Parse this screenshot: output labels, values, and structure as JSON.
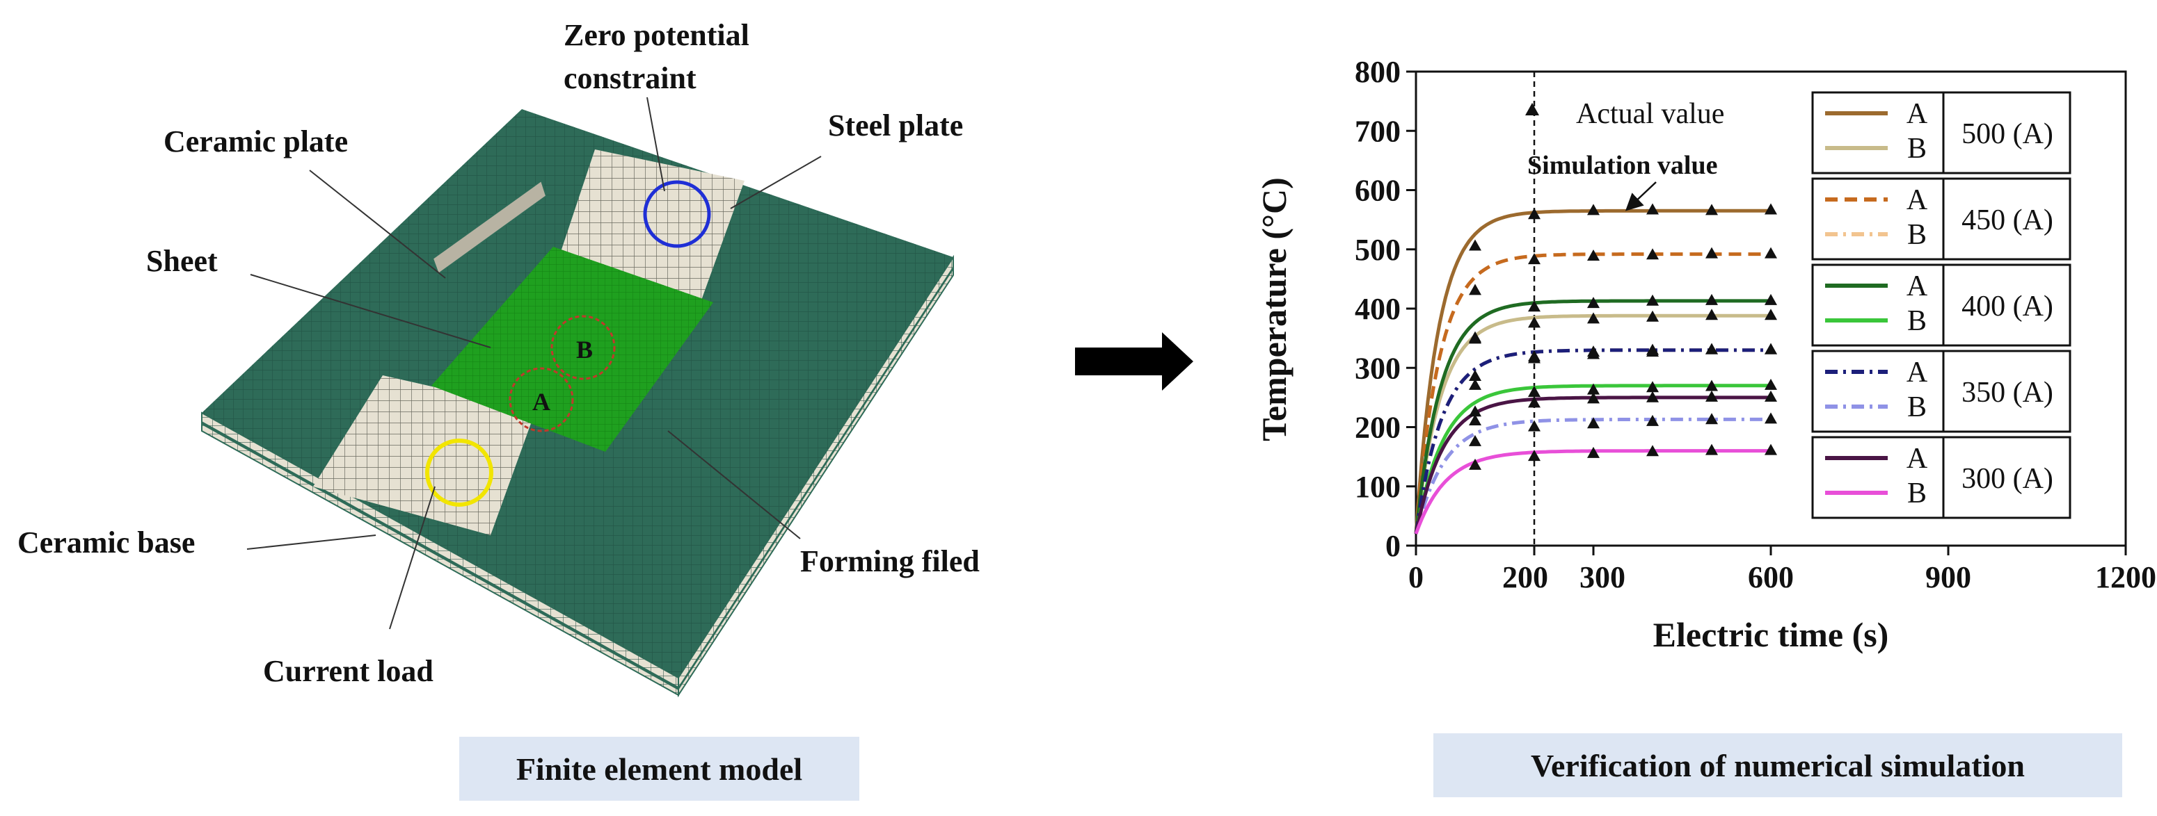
{
  "model": {
    "caption": "Finite element model",
    "labels": {
      "zero_potential_line1": "Zero potential",
      "zero_potential_line2": "constraint",
      "steel_plate": "Steel plate",
      "ceramic_plate": "Ceramic plate",
      "sheet": "Sheet",
      "ceramic_base": "Ceramic base",
      "forming_field": "Forming filed",
      "current_load": "Current load",
      "point_a": "A",
      "point_b": "B"
    },
    "colors": {
      "ceramic": "#2e6b58",
      "steel": "#e6e1d2",
      "sheet": "#1fa01f",
      "zero_potential_circle": "#1f2fd6",
      "current_load_circle": "#f2e500",
      "point_circle": "#c0392b"
    }
  },
  "arrow": {
    "icon": "right-arrow-icon",
    "color": "#000000"
  },
  "chart_caption": "Verification of numerical simulation",
  "chart_data": {
    "type": "line",
    "xlabel": "Electric time (s)",
    "ylabel": "Temperature (°C)",
    "xlim": [
      0,
      1200
    ],
    "ylim": [
      0,
      800
    ],
    "x_ticks": [
      0,
      200,
      300,
      600,
      900,
      1200
    ],
    "x_tick_labels": [
      "0",
      "200",
      "300",
      "600",
      "900",
      "1200"
    ],
    "y_ticks": [
      0,
      100,
      200,
      300,
      400,
      500,
      600,
      700,
      800
    ],
    "grid": false,
    "vline_x": 200,
    "annotations": {
      "actual_value": "Actual value",
      "simulation_value": "Simulation value"
    },
    "legend_groups": [
      {
        "current": "500 (A)",
        "A_color": "#9c6a2e",
        "B_color": "#c8bb8a",
        "A_dash": "solid",
        "B_dash": "solid"
      },
      {
        "current": "450 (A)",
        "A_color": "#c66a1e",
        "B_color": "#f2c48f",
        "A_dash": "dashed",
        "B_dash": "dashdot"
      },
      {
        "current": "400 (A)",
        "A_color": "#1f6b22",
        "B_color": "#3ac63a",
        "A_dash": "solid",
        "B_dash": "solid"
      },
      {
        "current": "350 (A)",
        "A_color": "#1c1f7a",
        "B_color": "#8f92e6",
        "A_dash": "dashdot",
        "B_dash": "dashdot"
      },
      {
        "current": "300 (A)",
        "A_color": "#4a1545",
        "B_color": "#e84fd8",
        "A_dash": "solid",
        "B_dash": "solid"
      }
    ],
    "legend_series_labels": [
      "A",
      "B"
    ],
    "series": [
      {
        "group": 0,
        "point": "A",
        "plateau": 565,
        "start": 20,
        "tau": 38
      },
      {
        "group": 0,
        "point": "B",
        "plateau": 388,
        "start": 20,
        "tau": 42
      },
      {
        "group": 1,
        "point": "A",
        "plateau": 492,
        "start": 20,
        "tau": 40
      },
      {
        "group": 1,
        "point": "B",
        "plateau": 330,
        "start": 20,
        "tau": 44
      },
      {
        "group": 2,
        "point": "A",
        "plateau": 413,
        "start": 20,
        "tau": 42
      },
      {
        "group": 2,
        "point": "B",
        "plateau": 270,
        "start": 20,
        "tau": 46
      },
      {
        "group": 3,
        "point": "A",
        "plateau": 330,
        "start": 20,
        "tau": 44
      },
      {
        "group": 3,
        "point": "B",
        "plateau": 213,
        "start": 20,
        "tau": 48
      },
      {
        "group": 4,
        "point": "A",
        "plateau": 250,
        "start": 20,
        "tau": 46
      },
      {
        "group": 4,
        "point": "B",
        "plateau": 160,
        "start": 20,
        "tau": 50
      }
    ],
    "measured_times": [
      100,
      200,
      300,
      400,
      500,
      600
    ],
    "measured_values": [
      [
        505,
        558,
        565,
        566,
        565,
        566
      ],
      [
        350,
        375,
        382,
        385,
        388,
        388
      ],
      [
        430,
        482,
        488,
        490,
        492,
        492
      ],
      [
        285,
        315,
        322,
        326,
        330,
        330
      ],
      [
        348,
        402,
        408,
        412,
        413,
        413
      ],
      [
        225,
        258,
        262,
        266,
        268,
        270
      ],
      [
        270,
        318,
        326,
        329,
        330,
        330
      ],
      [
        175,
        200,
        205,
        209,
        212,
        213
      ],
      [
        210,
        240,
        247,
        249,
        250,
        250
      ],
      [
        135,
        150,
        155,
        158,
        160,
        160
      ]
    ]
  }
}
